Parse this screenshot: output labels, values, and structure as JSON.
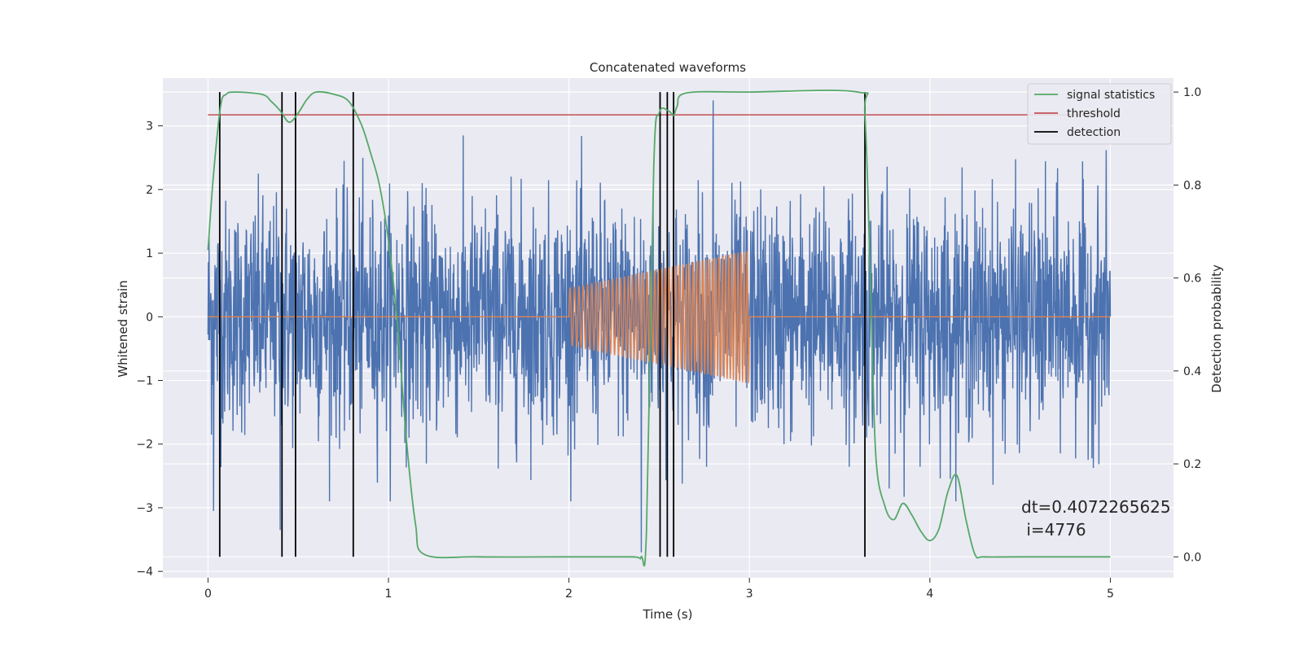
{
  "chart_data": {
    "type": "line",
    "title": "Concatenated waveforms",
    "xlabel": "Time (s)",
    "ylabel_left": "Whitened strain",
    "ylabel_right": "Detection probability",
    "xlim": [
      -0.25,
      5.35
    ],
    "ylim_left": [
      -4.1,
      3.75
    ],
    "ylim_right": [
      -0.045,
      1.03
    ],
    "x_ticks": [
      "0",
      "1",
      "2",
      "3",
      "4",
      "5"
    ],
    "y_left_ticks": [
      "−4",
      "−3",
      "−2",
      "−1",
      "0",
      "1",
      "2",
      "3"
    ],
    "y_right_ticks": [
      "0.0",
      "0.2",
      "0.4",
      "0.6",
      "0.8",
      "1.0"
    ],
    "grid": true,
    "legend_position": "top-right",
    "series": [
      {
        "name": "",
        "axis": "left",
        "color": "#4c72b0",
        "kind": "noise",
        "x_range": [
          0,
          5
        ],
        "std": 0.9,
        "notable_points": [
          {
            "x": 0.03,
            "y": -3.05
          },
          {
            "x": 0.4,
            "y": -3.35
          },
          {
            "x": 2.8,
            "y": 3.4
          },
          {
            "x": 2.4,
            "y": -3.7
          }
        ]
      },
      {
        "name": "",
        "axis": "left",
        "color": "#dd8452",
        "kind": "chirp",
        "segments": [
          {
            "x": 0.0,
            "y": 0.0
          },
          {
            "x": 2.0,
            "y": 0.0
          },
          {
            "x": 3.0,
            "y": 0.0
          },
          {
            "x": 5.0,
            "y": 0.0
          }
        ],
        "chirp": {
          "x_start": 2.0,
          "x_end": 3.0,
          "amp_start": 0.45,
          "amp_end": 1.05,
          "freq_start": 40,
          "freq_end": 60
        }
      },
      {
        "name": "signal statistics",
        "axis": "right",
        "color": "#55a868",
        "x": [
          0.0,
          0.03,
          0.07,
          0.1,
          0.15,
          0.3,
          0.35,
          0.4,
          0.45,
          0.5,
          0.55,
          0.6,
          0.7,
          0.78,
          0.85,
          0.9,
          0.95,
          1.0,
          1.05,
          1.1,
          1.15,
          1.2,
          1.5,
          2.0,
          2.35,
          2.4,
          2.43,
          2.47,
          2.5,
          2.55,
          2.58,
          2.6,
          2.65,
          3.0,
          3.6,
          3.64,
          3.67,
          3.7,
          3.75,
          3.8,
          3.85,
          3.9,
          3.95,
          4.0,
          4.05,
          4.1,
          4.15,
          4.2,
          4.25,
          4.3,
          4.5,
          5.0
        ],
        "y": [
          0.66,
          0.82,
          0.97,
          0.995,
          1.0,
          0.995,
          0.98,
          0.96,
          0.935,
          0.955,
          0.985,
          1.0,
          0.995,
          0.98,
          0.93,
          0.87,
          0.8,
          0.68,
          0.5,
          0.25,
          0.07,
          0.005,
          0.0,
          0.0,
          0.0,
          0.0,
          0.06,
          0.84,
          0.955,
          0.96,
          0.95,
          0.97,
          0.998,
          1.0,
          1.0,
          0.95,
          0.6,
          0.22,
          0.11,
          0.08,
          0.115,
          0.09,
          0.055,
          0.035,
          0.06,
          0.14,
          0.175,
          0.08,
          0.005,
          0.0,
          0.0,
          0.0
        ]
      },
      {
        "name": "threshold",
        "axis": "right",
        "color": "#c44e52",
        "x": [
          0.0,
          5.0
        ],
        "y": [
          0.951,
          0.951
        ]
      },
      {
        "name": "detection",
        "axis": "right",
        "color": "#000000",
        "kind": "vlines",
        "x": [
          0.065,
          0.41,
          0.485,
          0.805,
          2.505,
          2.545,
          2.58,
          3.64
        ],
        "y_range": [
          0.0,
          1.0
        ]
      }
    ],
    "annotation": {
      "line1": "dt=0.4072265625",
      "line2": " i=4776"
    }
  }
}
